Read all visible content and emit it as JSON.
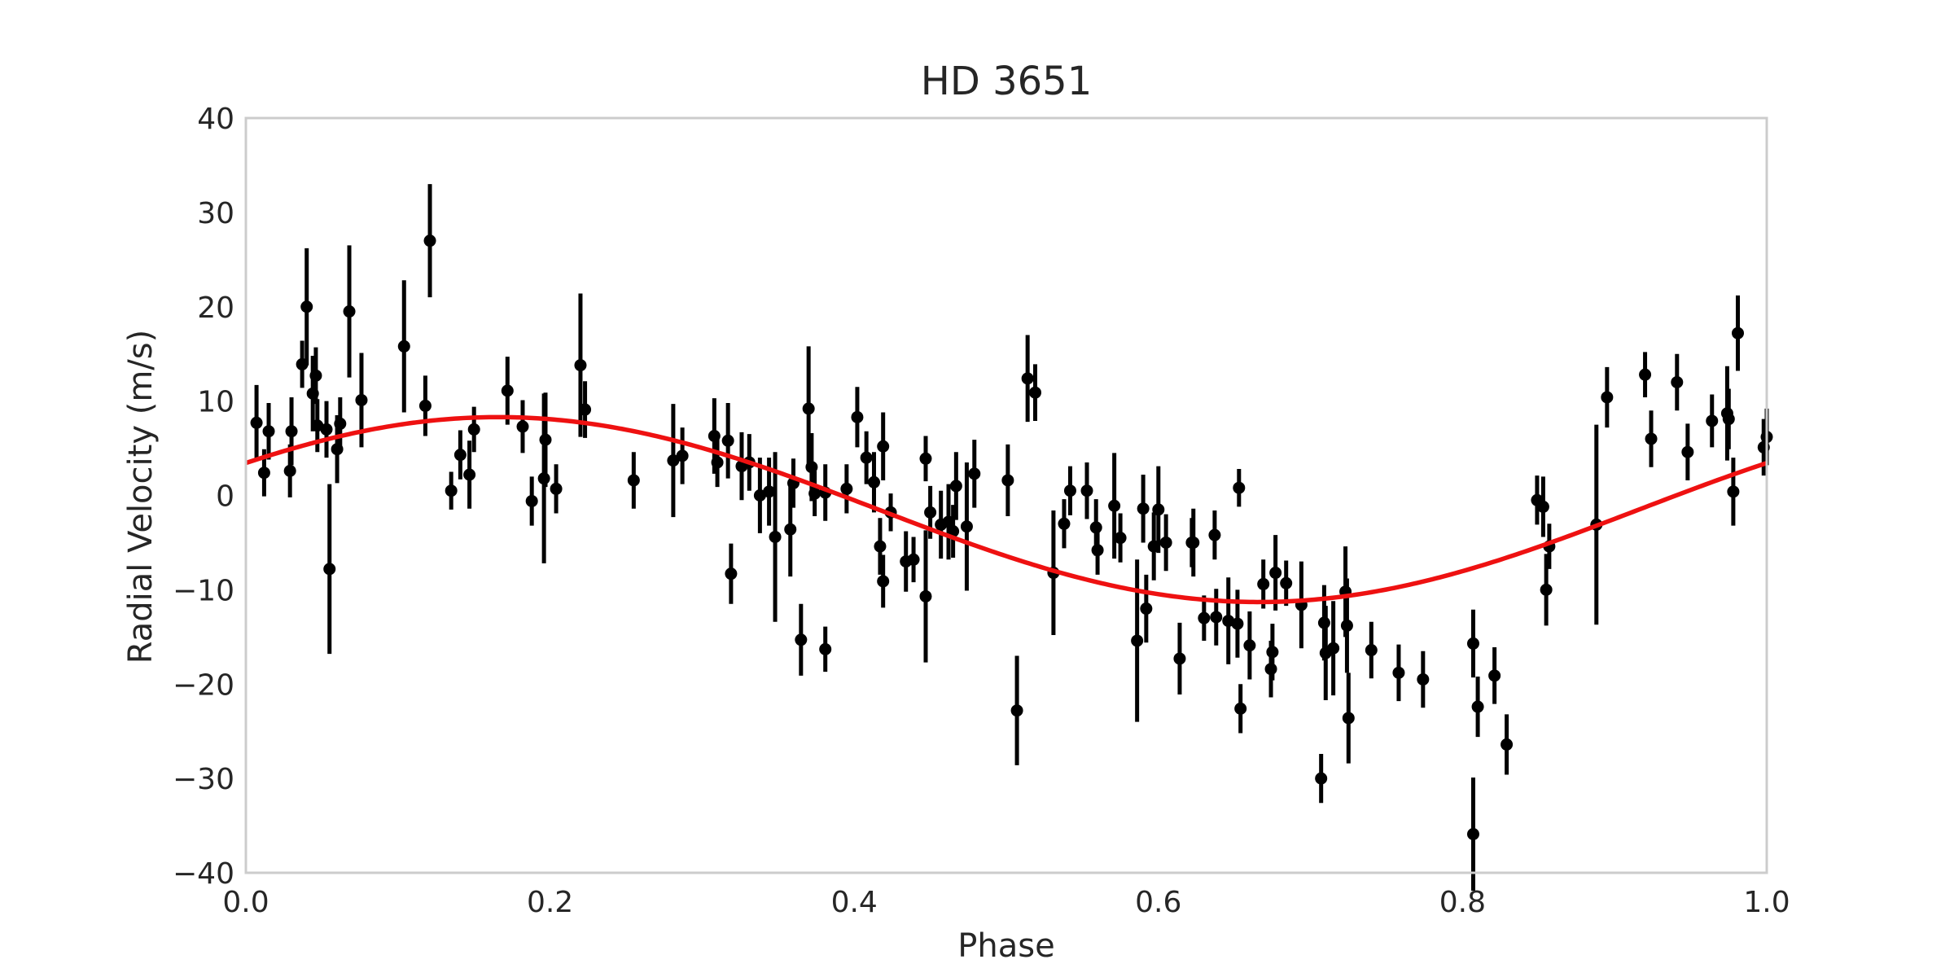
{
  "chart_data": {
    "type": "scatter",
    "title": "HD 3651",
    "xlabel": "Phase",
    "ylabel": "Radial Velocity (m/s)",
    "xlim": [
      0.0,
      1.0
    ],
    "ylim": [
      -40,
      40
    ],
    "xticks": [
      {
        "value": 0.0,
        "label": "0.0"
      },
      {
        "value": 0.2,
        "label": "0.2"
      },
      {
        "value": 0.4,
        "label": "0.4"
      },
      {
        "value": 0.6,
        "label": "0.6"
      },
      {
        "value": 0.8,
        "label": "0.8"
      },
      {
        "value": 1.0,
        "label": "1.0"
      }
    ],
    "yticks": [
      {
        "value": 40,
        "label": "40"
      },
      {
        "value": 30,
        "label": "30"
      },
      {
        "value": 20,
        "label": "20"
      },
      {
        "value": 10,
        "label": "10"
      },
      {
        "value": 0,
        "label": "0"
      },
      {
        "value": -10,
        "label": "−10"
      },
      {
        "value": -20,
        "label": "−20"
      },
      {
        "value": -30,
        "label": "−30"
      },
      {
        "value": -40,
        "label": "−40"
      }
    ],
    "grid": false,
    "colors": {
      "points": "#000000",
      "model": "#ee1111",
      "frame": "#cccccc",
      "text": "#262626"
    },
    "series": [
      {
        "kind": "errorbar",
        "points": [
          {
            "x": 0.007,
            "y": 7.7,
            "err": 4.0
          },
          {
            "x": 0.012,
            "y": 2.4,
            "err": 2.5
          },
          {
            "x": 0.015,
            "y": 6.8,
            "err": 3.0
          },
          {
            "x": 0.029,
            "y": 2.6,
            "err": 2.8
          },
          {
            "x": 0.03,
            "y": 6.8,
            "err": 3.6
          },
          {
            "x": 0.037,
            "y": 13.9,
            "err": 2.5
          },
          {
            "x": 0.04,
            "y": 20.0,
            "err": 6.2
          },
          {
            "x": 0.044,
            "y": 10.8,
            "err": 4.0
          },
          {
            "x": 0.046,
            "y": 12.7,
            "err": 3.0
          },
          {
            "x": 0.047,
            "y": 7.4,
            "err": 2.8
          },
          {
            "x": 0.053,
            "y": 7.0,
            "err": 3.0
          },
          {
            "x": 0.055,
            "y": -7.8,
            "err": 9.0
          },
          {
            "x": 0.06,
            "y": 4.9,
            "err": 3.6
          },
          {
            "x": 0.062,
            "y": 7.6,
            "err": 2.8
          },
          {
            "x": 0.068,
            "y": 19.5,
            "err": 7.0
          },
          {
            "x": 0.076,
            "y": 10.1,
            "err": 5.0
          },
          {
            "x": 0.104,
            "y": 15.8,
            "err": 7.0
          },
          {
            "x": 0.118,
            "y": 9.5,
            "err": 3.2
          },
          {
            "x": 0.121,
            "y": 27.0,
            "err": 6.0
          },
          {
            "x": 0.135,
            "y": 0.5,
            "err": 2.0
          },
          {
            "x": 0.141,
            "y": 4.3,
            "err": 2.6
          },
          {
            "x": 0.147,
            "y": 2.2,
            "err": 3.6
          },
          {
            "x": 0.15,
            "y": 7.0,
            "err": 2.4
          },
          {
            "x": 0.172,
            "y": 11.1,
            "err": 3.6
          },
          {
            "x": 0.182,
            "y": 7.3,
            "err": 2.8
          },
          {
            "x": 0.188,
            "y": -0.6,
            "err": 2.6
          },
          {
            "x": 0.196,
            "y": 1.8,
            "err": 9.0
          },
          {
            "x": 0.197,
            "y": 5.9,
            "err": 5.0
          },
          {
            "x": 0.204,
            "y": 0.7,
            "err": 2.6
          },
          {
            "x": 0.22,
            "y": 13.8,
            "err": 7.6
          },
          {
            "x": 0.223,
            "y": 9.1,
            "err": 3.0
          },
          {
            "x": 0.255,
            "y": 1.6,
            "err": 3.0
          },
          {
            "x": 0.281,
            "y": 3.7,
            "err": 6.0
          },
          {
            "x": 0.287,
            "y": 4.2,
            "err": 3.0
          },
          {
            "x": 0.308,
            "y": 6.3,
            "err": 4.0
          },
          {
            "x": 0.31,
            "y": 3.5,
            "err": 2.6
          },
          {
            "x": 0.317,
            "y": 5.8,
            "err": 4.0
          },
          {
            "x": 0.319,
            "y": -8.3,
            "err": 3.2
          },
          {
            "x": 0.326,
            "y": 3.1,
            "err": 3.6
          },
          {
            "x": 0.331,
            "y": 3.5,
            "err": 3.0
          },
          {
            "x": 0.338,
            "y": 0.0,
            "err": 4.0
          },
          {
            "x": 0.344,
            "y": 0.4,
            "err": 3.6
          },
          {
            "x": 0.348,
            "y": -4.4,
            "err": 9.0
          },
          {
            "x": 0.358,
            "y": -3.6,
            "err": 5.0
          },
          {
            "x": 0.36,
            "y": 1.3,
            "err": 2.6
          },
          {
            "x": 0.365,
            "y": -15.3,
            "err": 3.8
          },
          {
            "x": 0.37,
            "y": 9.2,
            "err": 6.6
          },
          {
            "x": 0.372,
            "y": 3.0,
            "err": 3.6
          },
          {
            "x": 0.374,
            "y": 0.2,
            "err": 2.4
          },
          {
            "x": 0.381,
            "y": -16.3,
            "err": 2.4
          },
          {
            "x": 0.381,
            "y": 0.3,
            "err": 3.0
          },
          {
            "x": 0.395,
            "y": 0.7,
            "err": 2.6
          },
          {
            "x": 0.402,
            "y": 8.3,
            "err": 3.2
          },
          {
            "x": 0.408,
            "y": 4.0,
            "err": 2.8
          },
          {
            "x": 0.413,
            "y": 1.4,
            "err": 3.2
          },
          {
            "x": 0.417,
            "y": -5.4,
            "err": 3.0
          },
          {
            "x": 0.419,
            "y": -9.1,
            "err": 2.8
          },
          {
            "x": 0.419,
            "y": 5.2,
            "err": 3.6
          },
          {
            "x": 0.424,
            "y": -1.8,
            "err": 2.0
          },
          {
            "x": 0.434,
            "y": -7.0,
            "err": 3.2
          },
          {
            "x": 0.439,
            "y": -6.8,
            "err": 2.4
          },
          {
            "x": 0.447,
            "y": 3.9,
            "err": 2.4
          },
          {
            "x": 0.447,
            "y": -10.7,
            "err": 7.0
          },
          {
            "x": 0.45,
            "y": -1.8,
            "err": 2.8
          },
          {
            "x": 0.457,
            "y": -3.1,
            "err": 3.6
          },
          {
            "x": 0.462,
            "y": -2.8,
            "err": 4.0
          },
          {
            "x": 0.465,
            "y": -3.8,
            "err": 2.8
          },
          {
            "x": 0.467,
            "y": 1.0,
            "err": 3.6
          },
          {
            "x": 0.474,
            "y": -3.3,
            "err": 6.8
          },
          {
            "x": 0.479,
            "y": 2.3,
            "err": 3.6
          },
          {
            "x": 0.501,
            "y": 1.6,
            "err": 3.8
          },
          {
            "x": 0.507,
            "y": -22.8,
            "err": 5.8
          },
          {
            "x": 0.514,
            "y": 12.4,
            "err": 4.6
          },
          {
            "x": 0.519,
            "y": 10.9,
            "err": 3.0
          },
          {
            "x": 0.531,
            "y": -8.2,
            "err": 6.6
          },
          {
            "x": 0.538,
            "y": -3.0,
            "err": 2.6
          },
          {
            "x": 0.542,
            "y": 0.5,
            "err": 2.6
          },
          {
            "x": 0.553,
            "y": 0.5,
            "err": 3.0
          },
          {
            "x": 0.559,
            "y": -3.4,
            "err": 3.0
          },
          {
            "x": 0.56,
            "y": -5.8,
            "err": 2.6
          },
          {
            "x": 0.571,
            "y": -1.1,
            "err": 5.6
          },
          {
            "x": 0.575,
            "y": -4.5,
            "err": 2.6
          },
          {
            "x": 0.586,
            "y": -15.4,
            "err": 8.6
          },
          {
            "x": 0.59,
            "y": -1.4,
            "err": 3.6
          },
          {
            "x": 0.592,
            "y": -12.0,
            "err": 3.6
          },
          {
            "x": 0.597,
            "y": -5.4,
            "err": 3.6
          },
          {
            "x": 0.6,
            "y": -1.5,
            "err": 4.6
          },
          {
            "x": 0.605,
            "y": -5.0,
            "err": 3.0
          },
          {
            "x": 0.614,
            "y": -17.3,
            "err": 3.8
          },
          {
            "x": 0.622,
            "y": -5.0,
            "err": 2.6
          },
          {
            "x": 0.623,
            "y": -5.0,
            "err": 3.6
          },
          {
            "x": 0.63,
            "y": -13.0,
            "err": 2.4
          },
          {
            "x": 0.637,
            "y": -4.2,
            "err": 2.6
          },
          {
            "x": 0.638,
            "y": -12.9,
            "err": 3.0
          },
          {
            "x": 0.646,
            "y": -13.3,
            "err": 4.6
          },
          {
            "x": 0.652,
            "y": -13.6,
            "err": 3.6
          },
          {
            "x": 0.653,
            "y": 0.8,
            "err": 2.0
          },
          {
            "x": 0.654,
            "y": -22.6,
            "err": 2.6
          },
          {
            "x": 0.66,
            "y": -15.9,
            "err": 3.6
          },
          {
            "x": 0.669,
            "y": -9.4,
            "err": 2.6
          },
          {
            "x": 0.674,
            "y": -18.4,
            "err": 3.0
          },
          {
            "x": 0.675,
            "y": -16.6,
            "err": 3.0
          },
          {
            "x": 0.677,
            "y": -8.2,
            "err": 4.0
          },
          {
            "x": 0.684,
            "y": -9.3,
            "err": 2.4
          },
          {
            "x": 0.694,
            "y": -11.6,
            "err": 4.6
          },
          {
            "x": 0.707,
            "y": -30.0,
            "err": 2.6
          },
          {
            "x": 0.709,
            "y": -13.5,
            "err": 4.0
          },
          {
            "x": 0.71,
            "y": -16.7,
            "err": 5.0
          },
          {
            "x": 0.715,
            "y": -16.2,
            "err": 5.0
          },
          {
            "x": 0.723,
            "y": -10.2,
            "err": 4.8
          },
          {
            "x": 0.724,
            "y": -13.8,
            "err": 5.0
          },
          {
            "x": 0.725,
            "y": -23.6,
            "err": 4.8
          },
          {
            "x": 0.74,
            "y": -16.4,
            "err": 3.0
          },
          {
            "x": 0.758,
            "y": -18.8,
            "err": 3.0
          },
          {
            "x": 0.774,
            "y": -19.5,
            "err": 3.0
          },
          {
            "x": 0.807,
            "y": -15.7,
            "err": 3.6
          },
          {
            "x": 0.807,
            "y": -35.9,
            "err": 6.0
          },
          {
            "x": 0.81,
            "y": -22.4,
            "err": 3.2
          },
          {
            "x": 0.821,
            "y": -19.1,
            "err": 3.0
          },
          {
            "x": 0.829,
            "y": -26.4,
            "err": 3.2
          },
          {
            "x": 0.849,
            "y": -0.5,
            "err": 2.6
          },
          {
            "x": 0.853,
            "y": -1.2,
            "err": 3.2
          },
          {
            "x": 0.855,
            "y": -10.0,
            "err": 3.8
          },
          {
            "x": 0.857,
            "y": -5.4,
            "err": 2.4
          },
          {
            "x": 0.888,
            "y": -3.1,
            "err": 10.6
          },
          {
            "x": 0.895,
            "y": 10.4,
            "err": 3.2
          },
          {
            "x": 0.92,
            "y": 12.8,
            "err": 2.4
          },
          {
            "x": 0.924,
            "y": 6.0,
            "err": 3.0
          },
          {
            "x": 0.941,
            "y": 12.0,
            "err": 3.0
          },
          {
            "x": 0.948,
            "y": 4.6,
            "err": 3.0
          },
          {
            "x": 0.964,
            "y": 7.9,
            "err": 2.8
          },
          {
            "x": 0.974,
            "y": 8.7,
            "err": 5.0
          },
          {
            "x": 0.975,
            "y": 8.1,
            "err": 3.2
          },
          {
            "x": 0.978,
            "y": 0.4,
            "err": 3.6
          },
          {
            "x": 0.981,
            "y": 17.2,
            "err": 4.0
          },
          {
            "x": 0.998,
            "y": 5.1,
            "err": 3.0
          },
          {
            "x": 1.0,
            "y": 6.2,
            "err": 3.0
          }
        ]
      },
      {
        "kind": "model-curve",
        "offset": -1.5,
        "amplitude": 9.8,
        "peak_phase": 0.166
      }
    ]
  }
}
